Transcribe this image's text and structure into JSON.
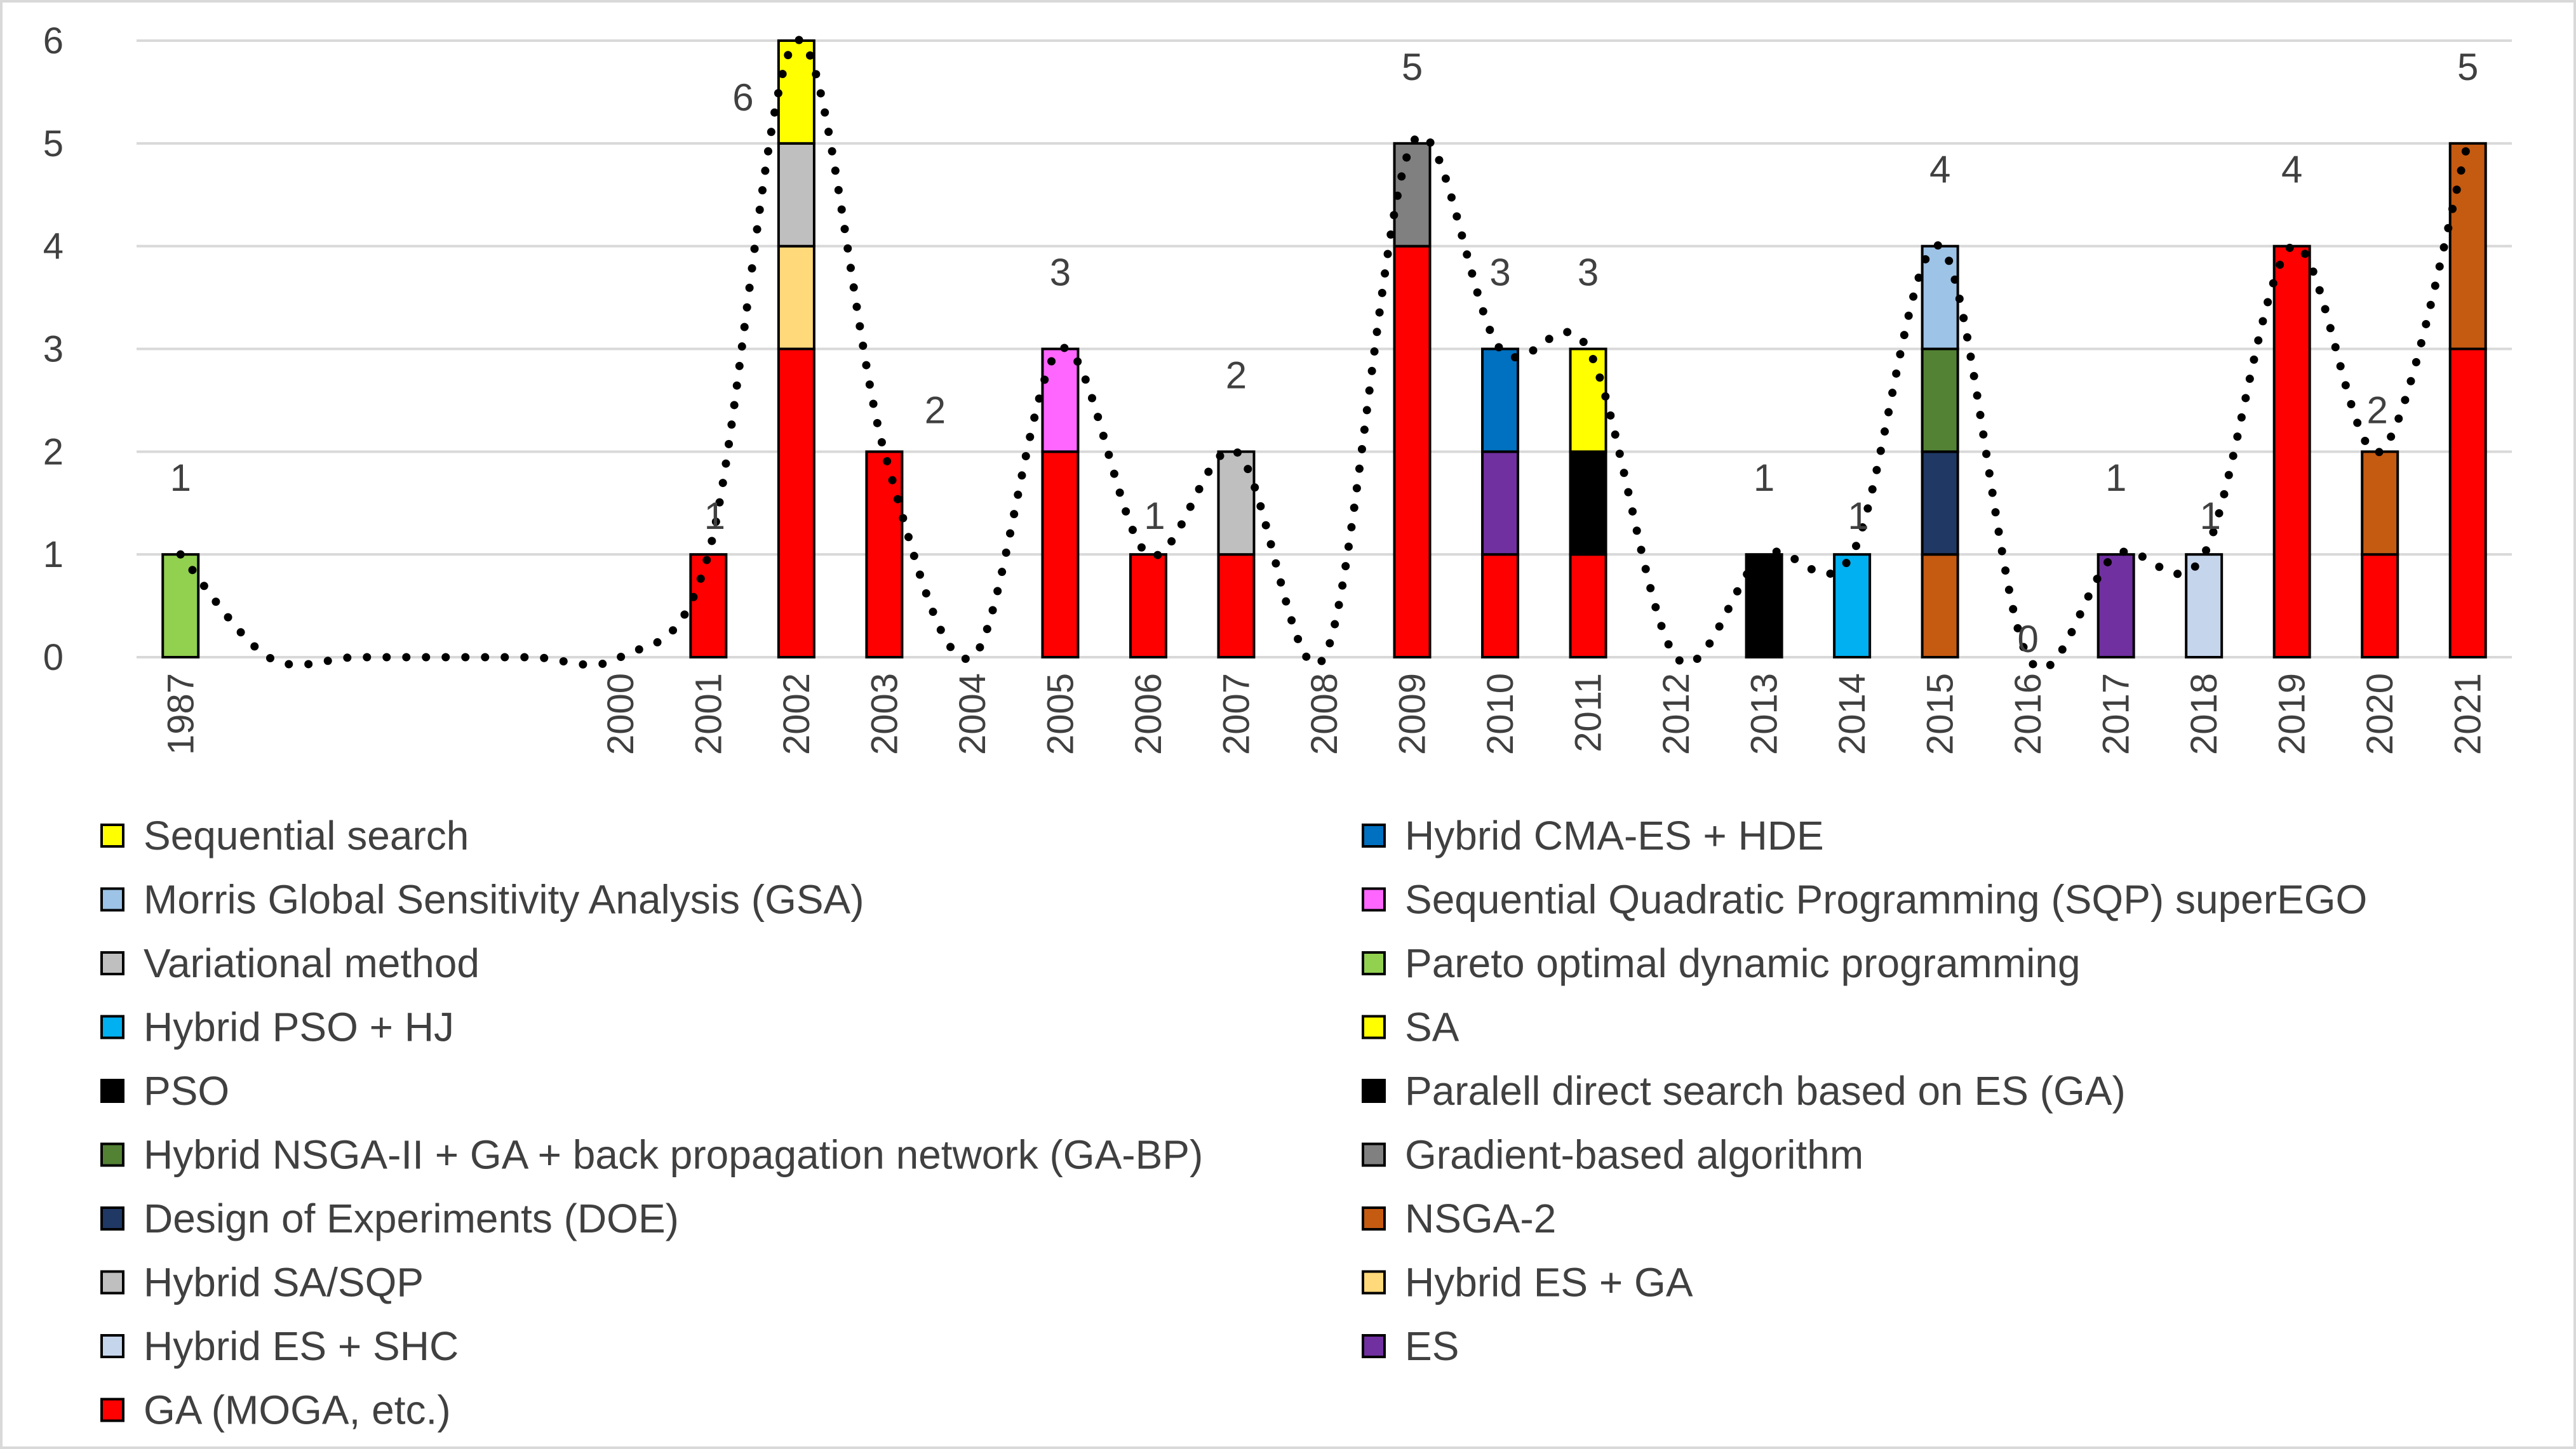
{
  "chart_data": {
    "type": "bar",
    "stacked": true,
    "title": "",
    "xlabel": "",
    "ylabel": "",
    "ylim": [
      0,
      6
    ],
    "y_ticks": [
      0,
      1,
      2,
      3,
      4,
      5,
      6
    ],
    "grid": "horizontal",
    "legend_position": "bottom",
    "categories": [
      "1987",
      "",
      "",
      "",
      "",
      "2000",
      "2001",
      "2002",
      "2003",
      "2004",
      "2005",
      "2006",
      "2007",
      "2008",
      "2009",
      "2010",
      "2011",
      "2012",
      "2013",
      "2014",
      "2015",
      "2016",
      "2017",
      "2018",
      "2019",
      "2020",
      "2021"
    ],
    "legend_order": [
      "Sequential search",
      "Hybrid CMA-ES + HDE",
      "Morris Global Sensitivity Analysis (GSA)",
      "Sequential Quadratic Programming (SQP) superEGO",
      "Variational method",
      "Pareto optimal dynamic programming",
      "Hybrid PSO + HJ",
      "SA",
      "PSO",
      "Paralell direct search based on ES (GA)",
      "Hybrid NSGA-II + GA + back propagation network (GA-BP)",
      "Gradient-based algorithm",
      "Design of Experiments (DOE)",
      "NSGA-2",
      "Hybrid SA/SQP",
      "Hybrid ES + GA",
      "Hybrid ES + SHC",
      "ES",
      "GA (MOGA, etc.)"
    ],
    "series": [
      {
        "name": "GA (MOGA, etc.)",
        "color": "#ff0000",
        "values": [
          0,
          0,
          0,
          0,
          0,
          0,
          1,
          3,
          2,
          0,
          2,
          1,
          1,
          0,
          4,
          1,
          1,
          0,
          0,
          0,
          0,
          0,
          0,
          0,
          4,
          1,
          3
        ]
      },
      {
        "name": "Pareto optimal dynamic programming",
        "color": "#92d050",
        "values": [
          1,
          0,
          0,
          0,
          0,
          0,
          0,
          0,
          0,
          0,
          0,
          0,
          0,
          0,
          0,
          0,
          0,
          0,
          0,
          0,
          0,
          0,
          0,
          0,
          0,
          0,
          0
        ]
      },
      {
        "name": "Hybrid ES + GA",
        "color": "#ffd97a",
        "values": [
          0,
          0,
          0,
          0,
          0,
          0,
          0,
          1,
          0,
          0,
          0,
          0,
          0,
          0,
          0,
          0,
          0,
          0,
          0,
          0,
          0,
          0,
          0,
          0,
          0,
          0,
          0
        ]
      },
      {
        "name": "Hybrid SA/SQP",
        "color": "#bfbfbf",
        "values": [
          0,
          0,
          0,
          0,
          0,
          0,
          0,
          1,
          0,
          0,
          0,
          0,
          0,
          0,
          0,
          0,
          0,
          0,
          0,
          0,
          0,
          0,
          0,
          0,
          0,
          0,
          0
        ]
      },
      {
        "name": "Sequential search",
        "color": "#ffff00",
        "values": [
          0,
          0,
          0,
          0,
          0,
          0,
          0,
          1,
          0,
          0,
          0,
          0,
          0,
          0,
          0,
          0,
          0,
          0,
          0,
          0,
          0,
          0,
          0,
          0,
          0,
          0,
          0
        ]
      },
      {
        "name": "Sequential Quadratic Programming (SQP) superEGO",
        "color": "#ff66ff",
        "values": [
          0,
          0,
          0,
          0,
          0,
          0,
          0,
          0,
          0,
          0,
          1,
          0,
          0,
          0,
          0,
          0,
          0,
          0,
          0,
          0,
          0,
          0,
          0,
          0,
          0,
          0,
          0
        ]
      },
      {
        "name": "Variational method",
        "color": "#bfbfbf",
        "values": [
          0,
          0,
          0,
          0,
          0,
          0,
          0,
          0,
          0,
          0,
          0,
          0,
          1,
          0,
          0,
          0,
          0,
          0,
          0,
          0,
          0,
          0,
          0,
          0,
          0,
          0,
          0
        ]
      },
      {
        "name": "Gradient-based algorithm",
        "color": "#808080",
        "values": [
          0,
          0,
          0,
          0,
          0,
          0,
          0,
          0,
          0,
          0,
          0,
          0,
          0,
          0,
          1,
          0,
          0,
          0,
          0,
          0,
          0,
          0,
          0,
          0,
          0,
          0,
          0
        ]
      },
      {
        "name": "ES",
        "color": "#7030a0",
        "values": [
          0,
          0,
          0,
          0,
          0,
          0,
          0,
          0,
          0,
          0,
          0,
          0,
          0,
          0,
          0,
          1,
          0,
          0,
          0,
          0,
          0,
          0,
          1,
          0,
          0,
          0,
          0
        ]
      },
      {
        "name": "Hybrid CMA-ES + HDE",
        "color": "#0070c0",
        "values": [
          0,
          0,
          0,
          0,
          0,
          0,
          0,
          0,
          0,
          0,
          0,
          0,
          0,
          0,
          0,
          1,
          0,
          0,
          0,
          0,
          0,
          0,
          0,
          0,
          0,
          0,
          0
        ]
      },
      {
        "name": "Paralell direct search based on ES (GA)",
        "color": "#000000",
        "values": [
          0,
          0,
          0,
          0,
          0,
          0,
          0,
          0,
          0,
          0,
          0,
          0,
          0,
          0,
          0,
          0,
          1,
          0,
          0,
          0,
          0,
          0,
          0,
          0,
          0,
          0,
          0
        ]
      },
      {
        "name": "SA",
        "color": "#ffff00",
        "values": [
          0,
          0,
          0,
          0,
          0,
          0,
          0,
          0,
          0,
          0,
          0,
          0,
          0,
          0,
          0,
          0,
          1,
          0,
          0,
          0,
          0,
          0,
          0,
          0,
          0,
          0,
          0
        ]
      },
      {
        "name": "PSO",
        "color": "#000000",
        "values": [
          0,
          0,
          0,
          0,
          0,
          0,
          0,
          0,
          0,
          0,
          0,
          0,
          0,
          0,
          0,
          0,
          0,
          0,
          1,
          0,
          0,
          0,
          0,
          0,
          0,
          0,
          0
        ]
      },
      {
        "name": "Hybrid PSO + HJ",
        "color": "#00b0f0",
        "values": [
          0,
          0,
          0,
          0,
          0,
          0,
          0,
          0,
          0,
          0,
          0,
          0,
          0,
          0,
          0,
          0,
          0,
          0,
          0,
          1,
          0,
          0,
          0,
          0,
          0,
          0,
          0
        ]
      },
      {
        "name": "NSGA-2",
        "color": "#c55a11",
        "values": [
          0,
          0,
          0,
          0,
          0,
          0,
          0,
          0,
          0,
          0,
          0,
          0,
          0,
          0,
          0,
          0,
          0,
          0,
          0,
          0,
          1,
          0,
          0,
          0,
          0,
          1,
          2
        ]
      },
      {
        "name": "Design of Experiments (DOE)",
        "color": "#1f3864",
        "values": [
          0,
          0,
          0,
          0,
          0,
          0,
          0,
          0,
          0,
          0,
          0,
          0,
          0,
          0,
          0,
          0,
          0,
          0,
          0,
          0,
          1,
          0,
          0,
          0,
          0,
          0,
          0
        ]
      },
      {
        "name": "Hybrid NSGA-II + GA + back propagation network (GA-BP)",
        "color": "#548235",
        "values": [
          0,
          0,
          0,
          0,
          0,
          0,
          0,
          0,
          0,
          0,
          0,
          0,
          0,
          0,
          0,
          0,
          0,
          0,
          0,
          0,
          1,
          0,
          0,
          0,
          0,
          0,
          0
        ]
      },
      {
        "name": "Morris Global Sensitivity Analysis (GSA)",
        "color": "#9dc3e6",
        "values": [
          0,
          0,
          0,
          0,
          0,
          0,
          0,
          0,
          0,
          0,
          0,
          0,
          0,
          0,
          0,
          0,
          0,
          0,
          0,
          0,
          1,
          0,
          0,
          0,
          0,
          0,
          0
        ]
      },
      {
        "name": "Hybrid ES + SHC",
        "color": "#c5d5ec",
        "values": [
          0,
          0,
          0,
          0,
          0,
          0,
          0,
          0,
          0,
          0,
          0,
          0,
          0,
          0,
          0,
          0,
          0,
          0,
          0,
          0,
          0,
          0,
          0,
          1,
          0,
          0,
          0
        ]
      }
    ],
    "totals": [
      1,
      0,
      0,
      0,
      0,
      0,
      1,
      6,
      2,
      0,
      3,
      1,
      2,
      0,
      5,
      3,
      3,
      0,
      1,
      1,
      4,
      0,
      1,
      1,
      4,
      2,
      5
    ],
    "total_labels": [
      "1",
      "",
      "",
      "",
      "",
      "",
      "1",
      "6",
      "2",
      "",
      "3",
      "1",
      "2",
      "",
      "5",
      "3",
      "3",
      "",
      "1",
      "1",
      "4",
      "0",
      "1",
      "1",
      "4",
      "2",
      "5"
    ],
    "trendline": {
      "style": "dotted",
      "color": "#000000",
      "values": [
        1,
        0,
        0,
        0,
        0,
        0,
        1,
        6,
        2,
        0,
        3,
        1,
        2,
        0,
        5,
        3,
        3,
        0,
        1,
        1,
        4,
        0,
        1,
        1,
        4,
        2,
        5
      ]
    }
  }
}
